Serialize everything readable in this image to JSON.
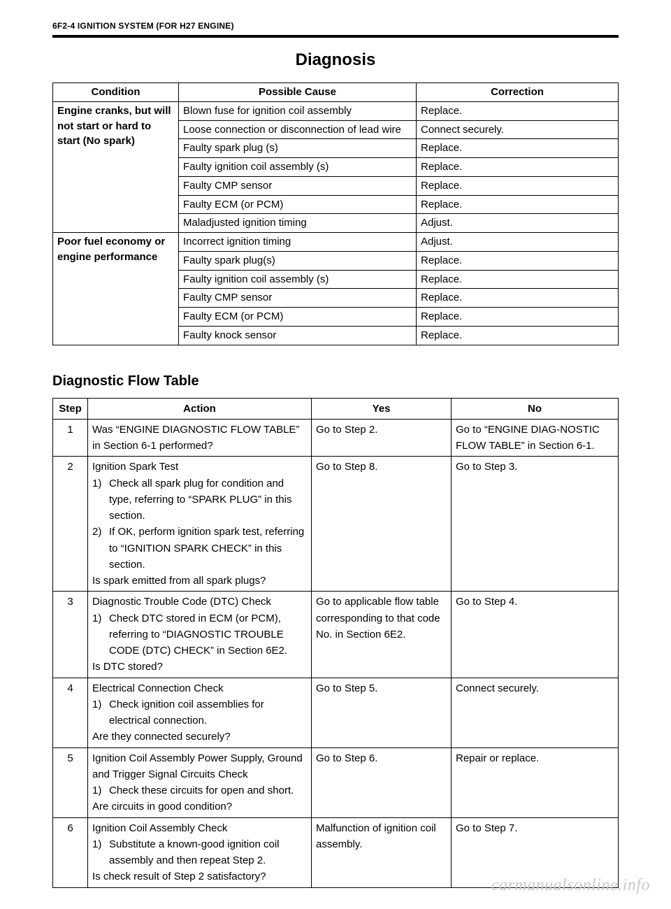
{
  "header": "6F2-4 IGNITION SYSTEM (FOR H27 ENGINE)",
  "title": "Diagnosis",
  "subTitle": "Diagnostic Flow Table",
  "watermark": "carmanualsonline.info",
  "diagTable": {
    "headers": {
      "condition": "Condition",
      "cause": "Possible Cause",
      "correction": "Correction"
    },
    "groups": [
      {
        "condition": "Engine cranks, but will not start or hard to start (No spark)",
        "rows": [
          {
            "cause": "Blown fuse for ignition coil assembly",
            "correction": "Replace."
          },
          {
            "cause": "Loose connection or disconnection of lead wire",
            "correction": "Connect securely."
          },
          {
            "cause": "Faulty spark plug (s)",
            "correction": "Replace."
          },
          {
            "cause": "Faulty ignition coil assembly (s)",
            "correction": "Replace."
          },
          {
            "cause": "Faulty CMP sensor",
            "correction": "Replace."
          },
          {
            "cause": "Faulty ECM (or PCM)",
            "correction": "Replace."
          },
          {
            "cause": "Maladjusted ignition timing",
            "correction": "Adjust."
          }
        ]
      },
      {
        "condition": "Poor fuel economy or engine performance",
        "rows": [
          {
            "cause": "Incorrect ignition timing",
            "correction": "Adjust."
          },
          {
            "cause": "Faulty spark plug(s)",
            "correction": "Replace."
          },
          {
            "cause": "Faulty ignition coil assembly (s)",
            "correction": "Replace."
          },
          {
            "cause": "Faulty CMP sensor",
            "correction": "Replace."
          },
          {
            "cause": "Faulty ECM (or PCM)",
            "correction": "Replace."
          },
          {
            "cause": "Faulty knock sensor",
            "correction": "Replace."
          }
        ]
      }
    ]
  },
  "flowTable": {
    "headers": {
      "step": "Step",
      "action": "Action",
      "yes": "Yes",
      "no": "No"
    },
    "rows": [
      {
        "step": "1",
        "action_intro": "Was “ENGINE DIAGNOSTIC FLOW TABLE” in Section 6-1 performed?",
        "yes": "Go to Step 2.",
        "no": "Go to “ENGINE DIAG-NOSTIC FLOW TABLE” in Section 6-1."
      },
      {
        "step": "2",
        "action_intro": "Ignition Spark Test",
        "sub": [
          "Check all spark plug for condition and type, referring to “SPARK PLUG” in this section.",
          "If OK, perform ignition spark test, referring to “IGNITION SPARK CHECK” in this section."
        ],
        "action_outro": "Is spark emitted from all spark plugs?",
        "yes": "Go to Step 8.",
        "no": "Go to Step 3."
      },
      {
        "step": "3",
        "action_intro": "Diagnostic Trouble Code (DTC) Check",
        "sub": [
          "Check DTC stored in ECM (or PCM), referring to “DIAGNOSTIC TROUBLE CODE (DTC) CHECK” in Section 6E2."
        ],
        "action_outro": "Is DTC stored?",
        "yes": "Go to applicable flow table corresponding to that code No. in Section 6E2.",
        "no": "Go to Step 4."
      },
      {
        "step": "4",
        "action_intro": "Electrical Connection Check",
        "sub": [
          "Check ignition coil assemblies for electrical connection."
        ],
        "action_outro": "Are they connected securely?",
        "yes": "Go to Step 5.",
        "no": "Connect securely."
      },
      {
        "step": "5",
        "action_intro": "Ignition Coil Assembly Power Supply, Ground and Trigger Signal Circuits Check",
        "sub": [
          "Check these circuits for open and short."
        ],
        "action_outro": "Are circuits in good condition?",
        "yes": "Go to Step 6.",
        "no": "Repair or replace."
      },
      {
        "step": "6",
        "action_intro": "Ignition Coil Assembly Check",
        "sub": [
          "Substitute a known-good ignition coil assembly and then repeat Step 2."
        ],
        "action_outro": "Is check result of Step 2 satisfactory?",
        "yes": "Malfunction of ignition coil assembly.",
        "no": "Go to Step 7."
      }
    ]
  }
}
